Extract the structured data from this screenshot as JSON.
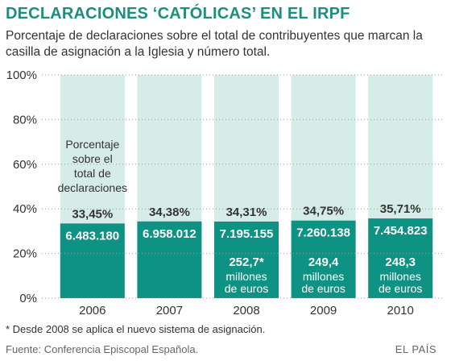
{
  "title": "DECLARACIONES ‘CATÓLICAS’ EN EL IRPF",
  "subtitle": "Porcentaje de declaraciones sobre el total de contribuyentes que marcan la casilla de asignación a la Iglesia y número total.",
  "footnote": "* Desde 2008 se aplica el nuevo sistema de asignación.",
  "source": "Fuente: Conferencia Episcopal Española.",
  "brand": "EL PAÍS",
  "colors": {
    "accent": "#1a8f80",
    "bar": "#0e9284",
    "background_bar": "#d6ece9",
    "grid": "#999999"
  },
  "chart_data": {
    "type": "bar",
    "categories": [
      "2006",
      "2007",
      "2008",
      "2009",
      "2010"
    ],
    "values": [
      33.45,
      34.38,
      34.31,
      34.75,
      35.71
    ],
    "value_labels": [
      "33,45%",
      "34,38%",
      "34,31%",
      "34,75%",
      "35,71%"
    ],
    "declarations": [
      "6.483.180",
      "6.958.012",
      "7.195.155",
      "7.260.138",
      "7.454.823"
    ],
    "amounts": [
      "",
      "",
      "252,7*",
      "249,4",
      "248,3"
    ],
    "amount_unit": "millones de euros",
    "annotation": "Porcentaje sobre el total de declaraciones",
    "ylim": [
      0,
      100
    ],
    "yticks": [
      "0%",
      "20%",
      "40%",
      "60%",
      "80%",
      "100%"
    ],
    "grid": true
  }
}
